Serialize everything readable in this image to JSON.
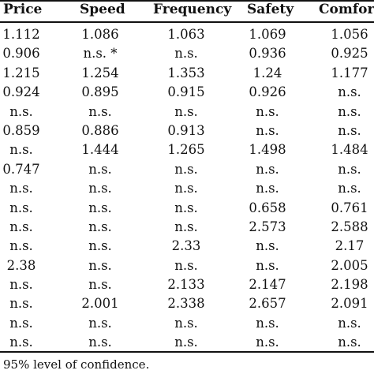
{
  "table": {
    "headers": [
      "Price",
      "Speed",
      "Frequency",
      "Safety",
      "Comfor"
    ],
    "rows": [
      [
        "1.112",
        "1.086",
        "1.063",
        "1.069",
        "1.056"
      ],
      [
        "0.906",
        "n.s. *",
        "n.s.",
        "0.936",
        "0.925"
      ],
      [
        "1.215",
        "1.254",
        "1.353",
        "1.24",
        "1.177"
      ],
      [
        "0.924",
        "0.895",
        "0.915",
        "0.926",
        "n.s."
      ],
      [
        "n.s.",
        "n.s.",
        "n.s.",
        "n.s.",
        "n.s."
      ],
      [
        "0.859",
        "0.886",
        "0.913",
        "n.s.",
        "n.s."
      ],
      [
        "n.s.",
        "1.444",
        "1.265",
        "1.498",
        "1.484"
      ],
      [
        "0.747",
        "n.s.",
        "n.s.",
        "n.s.",
        "n.s."
      ],
      [
        "n.s.",
        "n.s.",
        "n.s.",
        "n.s.",
        "n.s."
      ],
      [
        "n.s.",
        "n.s.",
        "n.s.",
        "0.658",
        "0.761"
      ],
      [
        "n.s.",
        "n.s.",
        "n.s.",
        "2.573",
        "2.588"
      ],
      [
        "n.s.",
        "n.s.",
        "2.33",
        "n.s.",
        "2.17"
      ],
      [
        "2.38",
        "n.s.",
        "n.s.",
        "n.s.",
        "2.005"
      ],
      [
        "n.s.",
        "n.s.",
        "2.133",
        "2.147",
        "2.198"
      ],
      [
        "n.s.",
        "2.001",
        "2.338",
        "2.657",
        "2.091"
      ],
      [
        "n.s.",
        "n.s.",
        "n.s.",
        "n.s.",
        "n.s."
      ],
      [
        "n.s.",
        "n.s.",
        "n.s.",
        "n.s.",
        "n.s."
      ]
    ]
  },
  "footnote": "95% level of confidence."
}
